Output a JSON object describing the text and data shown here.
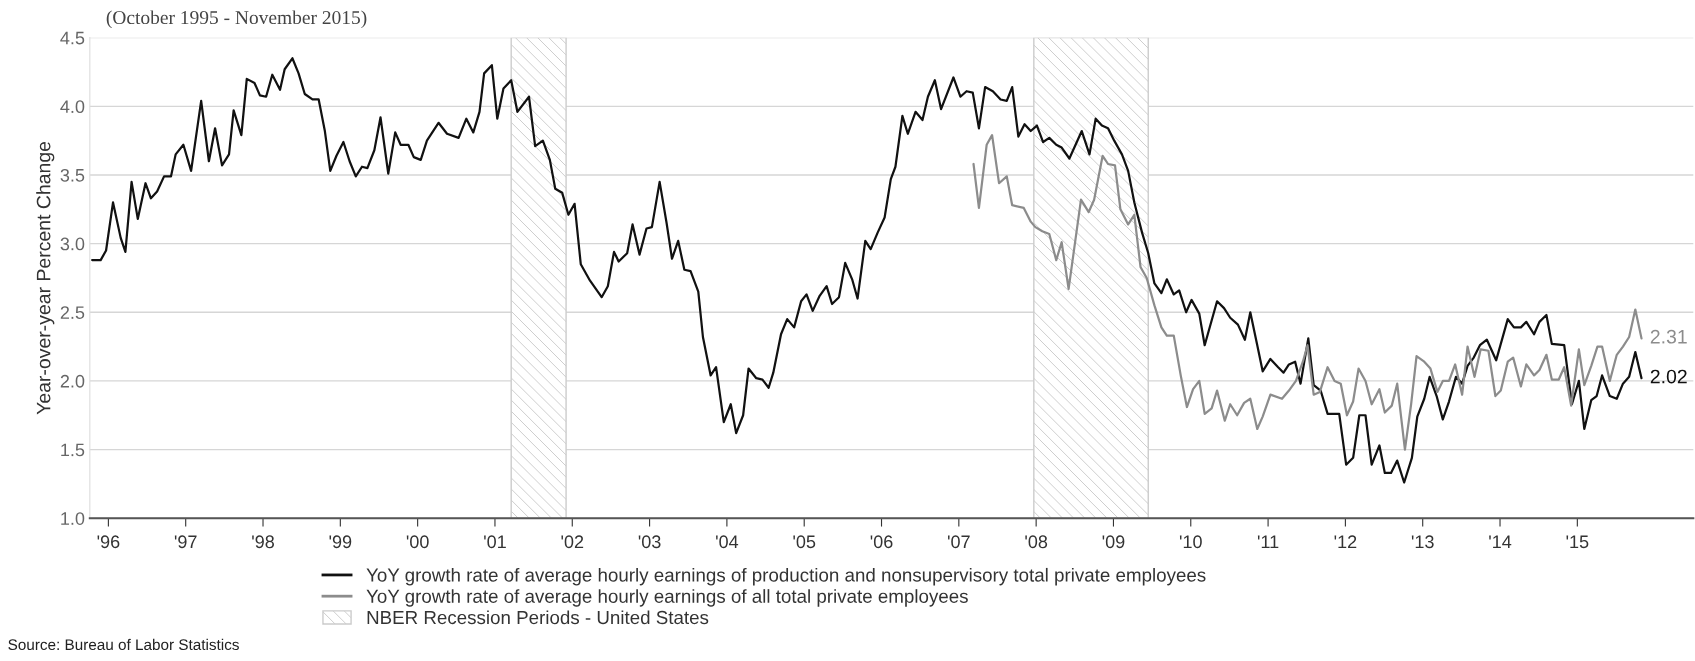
{
  "chart_data": {
    "type": "line",
    "subtitle": "(October 1995 - November 2015)",
    "ylabel": "Year-over-year Percent Change",
    "xlim": [
      1995.76,
      2016.5
    ],
    "ylim": [
      1.0,
      4.5
    ],
    "yticks": [
      {
        "value": 1.0,
        "label": "1.0"
      },
      {
        "value": 1.5,
        "label": "1.5"
      },
      {
        "value": 2.0,
        "label": "2.0"
      },
      {
        "value": 2.5,
        "label": "2.5"
      },
      {
        "value": 3.0,
        "label": "3.0"
      },
      {
        "value": 3.5,
        "label": "3.5"
      },
      {
        "value": 4.0,
        "label": "4.0"
      },
      {
        "value": 4.5,
        "label": "4.5"
      }
    ],
    "xticks": [
      {
        "value": 1996,
        "label": "'96"
      },
      {
        "value": 1997,
        "label": "'97"
      },
      {
        "value": 1998,
        "label": "'98"
      },
      {
        "value": 1999,
        "label": "'99"
      },
      {
        "value": 2000,
        "label": "'00"
      },
      {
        "value": 2001,
        "label": "'01"
      },
      {
        "value": 2002,
        "label": "'02"
      },
      {
        "value": 2003,
        "label": "'03"
      },
      {
        "value": 2004,
        "label": "'04"
      },
      {
        "value": 2005,
        "label": "'05"
      },
      {
        "value": 2006,
        "label": "'06"
      },
      {
        "value": 2007,
        "label": "'07"
      },
      {
        "value": 2008,
        "label": "'08"
      },
      {
        "value": 2009,
        "label": "'09"
      },
      {
        "value": 2010,
        "label": "'10"
      },
      {
        "value": 2011,
        "label": "'11"
      },
      {
        "value": 2012,
        "label": "'12"
      },
      {
        "value": 2013,
        "label": "'13"
      },
      {
        "value": 2014,
        "label": "'14"
      },
      {
        "value": 2015,
        "label": "'15"
      }
    ],
    "grid": "y",
    "legend": "bottom",
    "series": [
      {
        "name": "YoY growth rate of average hourly earnings of production and nonsupervisory total private employees",
        "color": "#111111",
        "x": [
          1995.79,
          1995.9,
          1995.97,
          1996.06,
          1996.16,
          1996.22,
          1996.3,
          1996.38,
          1996.48,
          1996.55,
          1996.63,
          1996.72,
          1996.81,
          1996.87,
          1996.97,
          1997.07,
          1997.2,
          1997.3,
          1997.38,
          1997.47,
          1997.56,
          1997.62,
          1997.72,
          1997.79,
          1997.89,
          1997.96,
          1998.04,
          1998.12,
          1998.22,
          1998.28,
          1998.38,
          1998.46,
          1998.54,
          1998.64,
          1998.72,
          1998.8,
          1998.87,
          1998.95,
          1999.04,
          1999.12,
          1999.2,
          1999.28,
          1999.35,
          1999.44,
          1999.52,
          1999.62,
          1999.71,
          1999.78,
          1999.88,
          1999.95,
          2000.04,
          2000.12,
          2000.27,
          2000.38,
          2000.53,
          2000.63,
          2000.72,
          2000.8,
          2000.86,
          2000.96,
          2001.03,
          2001.11,
          2001.21,
          2001.29,
          2001.44,
          2001.52,
          2001.62,
          2001.71,
          2001.78,
          2001.87,
          2001.95,
          2002.03,
          2002.11,
          2002.23,
          2002.38,
          2002.46,
          2002.54,
          2002.6,
          2002.71,
          2002.78,
          2002.87,
          2002.96,
          2003.03,
          2003.13,
          2003.22,
          2003.29,
          2003.37,
          2003.45,
          2003.53,
          2003.63,
          2003.69,
          2003.79,
          2003.86,
          2003.96,
          2004.05,
          2004.12,
          2004.21,
          2004.28,
          2004.38,
          2004.46,
          2004.54,
          2004.6,
          2004.7,
          2004.78,
          2004.87,
          2004.96,
          2005.03,
          2005.11,
          2005.2,
          2005.29,
          2005.36,
          2005.45,
          2005.53,
          2005.62,
          2005.69,
          2005.79,
          2005.86,
          2005.95,
          2006.04,
          2006.12,
          2006.18,
          2006.27,
          2006.34,
          2006.44,
          2006.53,
          2006.6,
          2006.69,
          2006.77,
          2006.93,
          2007.02,
          2007.1,
          2007.18,
          2007.26,
          2007.34,
          2007.44,
          2007.54,
          2007.62,
          2007.69,
          2007.77,
          2007.85,
          2007.93,
          2008.01,
          2008.09,
          2008.17,
          2008.26,
          2008.33,
          2008.43,
          2008.59,
          2008.69,
          2008.77,
          2008.85,
          2008.93,
          2009.01,
          2009.11,
          2009.19,
          2009.27,
          2009.37,
          2009.45,
          2009.53,
          2009.62,
          2009.69,
          2009.78,
          2009.85,
          2009.94,
          2010.01,
          2010.11,
          2010.18,
          2010.34,
          2010.43,
          2010.51,
          2010.61,
          2010.7,
          2010.77,
          2010.86,
          2010.93,
          2011.03,
          2011.13,
          2011.2,
          2011.27,
          2011.35,
          2011.42,
          2011.52,
          2011.59,
          2011.68,
          2011.77,
          2011.92,
          2012.01,
          2012.1,
          2012.18,
          2012.26,
          2012.34,
          2012.44,
          2012.51,
          2012.59,
          2012.67,
          2012.76,
          2012.86,
          2012.93,
          2013.02,
          2013.09,
          2013.18,
          2013.26,
          2013.34,
          2013.43,
          2013.51,
          2013.58,
          2013.66,
          2013.74,
          2013.83,
          2013.95,
          2014.1,
          2014.18,
          2014.27,
          2014.34,
          2014.44,
          2014.51,
          2014.6,
          2014.67,
          2014.83,
          2014.93,
          2015.02,
          2015.09,
          2015.18,
          2015.25,
          2015.32,
          2015.42,
          2015.51,
          2015.59,
          2015.67,
          2015.75,
          2015.83
        ],
        "values": [
          2.88,
          2.88,
          2.95,
          3.3,
          3.04,
          2.94,
          3.45,
          3.18,
          3.44,
          3.33,
          3.38,
          3.49,
          3.49,
          3.65,
          3.72,
          3.53,
          4.04,
          3.6,
          3.84,
          3.57,
          3.65,
          3.97,
          3.79,
          4.2,
          4.17,
          4.08,
          4.07,
          4.23,
          4.12,
          4.27,
          4.35,
          4.24,
          4.09,
          4.05,
          4.05,
          3.82,
          3.53,
          3.64,
          3.74,
          3.6,
          3.49,
          3.56,
          3.55,
          3.68,
          3.92,
          3.51,
          3.81,
          3.72,
          3.72,
          3.63,
          3.61,
          3.75,
          3.88,
          3.8,
          3.77,
          3.91,
          3.81,
          3.96,
          4.24,
          4.3,
          3.91,
          4.13,
          4.19,
          3.96,
          4.07,
          3.71,
          3.75,
          3.61,
          3.4,
          3.37,
          3.21,
          3.29,
          2.85,
          2.73,
          2.61,
          2.69,
          2.94,
          2.87,
          2.93,
          3.14,
          2.92,
          3.11,
          3.12,
          3.45,
          3.15,
          2.89,
          3.02,
          2.81,
          2.8,
          2.65,
          2.32,
          2.04,
          2.1,
          1.7,
          1.83,
          1.62,
          1.75,
          2.09,
          2.02,
          2.01,
          1.95,
          2.06,
          2.34,
          2.45,
          2.39,
          2.58,
          2.63,
          2.51,
          2.62,
          2.69,
          2.56,
          2.61,
          2.86,
          2.74,
          2.6,
          3.02,
          2.96,
          3.08,
          3.19,
          3.47,
          3.56,
          3.93,
          3.8,
          3.96,
          3.9,
          4.07,
          4.19,
          3.98,
          4.21,
          4.07,
          4.11,
          4.1,
          3.84,
          4.14,
          4.11,
          4.05,
          4.04,
          4.14,
          3.78,
          3.87,
          3.82,
          3.86,
          3.74,
          3.77,
          3.72,
          3.7,
          3.62,
          3.82,
          3.65,
          3.91,
          3.86,
          3.84,
          3.75,
          3.65,
          3.53,
          3.3,
          3.08,
          2.93,
          2.71,
          2.64,
          2.74,
          2.63,
          2.66,
          2.5,
          2.59,
          2.49,
          2.26,
          2.58,
          2.53,
          2.46,
          2.41,
          2.3,
          2.5,
          2.26,
          2.07,
          2.16,
          2.1,
          2.06,
          2.12,
          2.14,
          1.98,
          2.31,
          1.97,
          1.93,
          1.76,
          1.76,
          1.39,
          1.44,
          1.75,
          1.75,
          1.39,
          1.53,
          1.33,
          1.33,
          1.42,
          1.26,
          1.44,
          1.74,
          1.87,
          2.03,
          1.89,
          1.72,
          1.85,
          2.03,
          1.98,
          2.11,
          2.17,
          2.26,
          2.3,
          2.15,
          2.45,
          2.39,
          2.39,
          2.43,
          2.34,
          2.43,
          2.48,
          2.27,
          2.26,
          1.83,
          2.0,
          1.65,
          1.86,
          1.89,
          2.04,
          1.89,
          1.87,
          1.98,
          2.03,
          2.21,
          2.02
        ]
      },
      {
        "name": "YoY growth rate of average hourly earnings of all total private employees",
        "color": "#8c8c8c",
        "x": [
          2007.19,
          2007.26,
          2007.36,
          2007.43,
          2007.52,
          2007.62,
          2007.69,
          2007.84,
          2007.93,
          2007.99,
          2008.08,
          2008.17,
          2008.26,
          2008.33,
          2008.42,
          2008.58,
          2008.68,
          2008.75,
          2008.86,
          2008.93,
          2009.02,
          2009.09,
          2009.19,
          2009.27,
          2009.35,
          2009.43,
          2009.53,
          2009.62,
          2009.69,
          2009.78,
          2009.87,
          2009.95,
          2010.03,
          2010.11,
          2010.18,
          2010.27,
          2010.34,
          2010.44,
          2010.51,
          2010.6,
          2010.69,
          2010.77,
          2010.86,
          2010.93,
          2011.03,
          2011.18,
          2011.27,
          2011.36,
          2011.45,
          2011.51,
          2011.59,
          2011.67,
          2011.77,
          2011.86,
          2011.94,
          2012.02,
          2012.1,
          2012.17,
          2012.26,
          2012.34,
          2012.44,
          2012.51,
          2012.6,
          2012.67,
          2012.77,
          2012.85,
          2012.92,
          2013.02,
          2013.1,
          2013.19,
          2013.26,
          2013.34,
          2013.42,
          2013.51,
          2013.58,
          2013.67,
          2013.75,
          2013.85,
          2013.94,
          2014.01,
          2014.1,
          2014.17,
          2014.27,
          2014.34,
          2014.44,
          2014.51,
          2014.6,
          2014.67,
          2014.76,
          2014.83,
          2014.92,
          2015.02,
          2015.09,
          2015.18,
          2015.26,
          2015.32,
          2015.42,
          2015.51,
          2015.59,
          2015.67,
          2015.75,
          2015.83
        ],
        "values": [
          3.58,
          3.26,
          3.72,
          3.79,
          3.44,
          3.49,
          3.28,
          3.26,
          3.16,
          3.12,
          3.09,
          3.07,
          2.88,
          3.01,
          2.67,
          3.32,
          3.23,
          3.32,
          3.64,
          3.58,
          3.57,
          3.25,
          3.14,
          3.21,
          2.83,
          2.75,
          2.55,
          2.39,
          2.33,
          2.33,
          2.04,
          1.81,
          1.94,
          2.0,
          1.76,
          1.8,
          1.93,
          1.71,
          1.83,
          1.75,
          1.84,
          1.87,
          1.65,
          1.74,
          1.9,
          1.87,
          1.93,
          2.0,
          2.14,
          2.26,
          1.9,
          1.92,
          2.1,
          2.0,
          1.98,
          1.75,
          1.85,
          2.09,
          2.0,
          1.83,
          1.94,
          1.77,
          1.82,
          1.98,
          1.5,
          1.83,
          2.18,
          2.14,
          2.09,
          1.92,
          2.0,
          2.0,
          2.12,
          1.9,
          2.25,
          2.03,
          2.23,
          2.22,
          1.89,
          1.93,
          2.14,
          2.17,
          1.96,
          2.12,
          2.04,
          2.08,
          2.19,
          2.01,
          2.01,
          2.1,
          1.82,
          2.23,
          1.97,
          2.11,
          2.25,
          2.25,
          2.0,
          2.19,
          2.25,
          2.32,
          2.52,
          2.31
        ]
      }
    ],
    "bands": [
      {
        "axis": "x",
        "from": 2001.21,
        "to": 2001.92,
        "label": "NBER Recession Periods - United States",
        "color": "#cccccc"
      },
      {
        "axis": "x",
        "from": 2007.97,
        "to": 2009.45,
        "color": "#cccccc"
      }
    ],
    "annotations": [
      {
        "text": "2.31",
        "x": 2015.83,
        "y": 2.31
      },
      {
        "text": "2.02",
        "x": 2015.83,
        "y": 2.02
      },
      "Source: Bureau of Labor Statistics"
    ]
  }
}
